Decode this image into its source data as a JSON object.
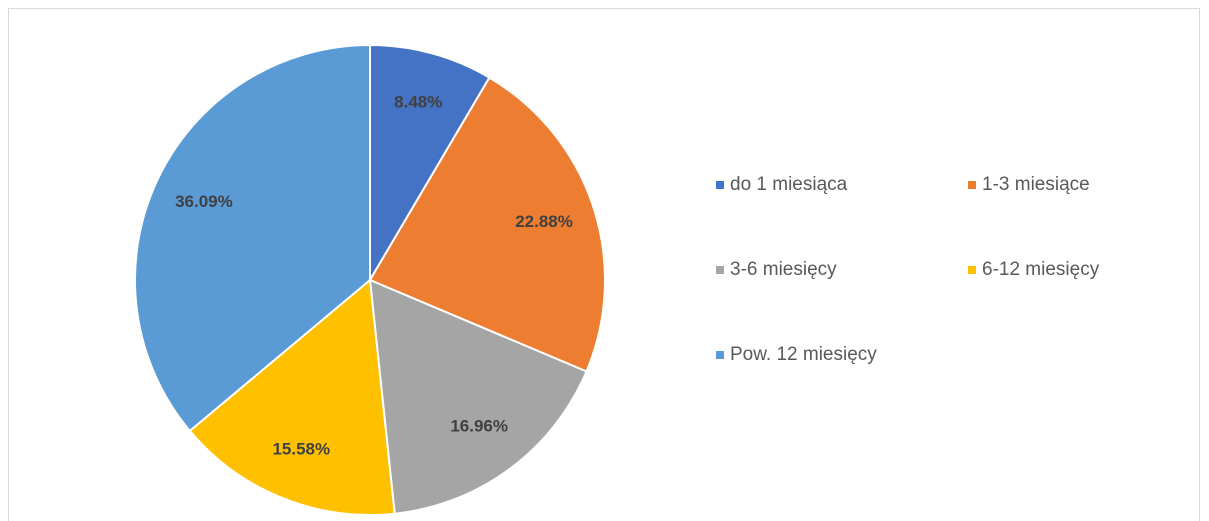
{
  "chart_data": {
    "type": "pie",
    "categories": [
      "do 1 miesiąca",
      "1-3 miesiące",
      "3-6 miesięcy",
      "6-12 miesięcy",
      "Pow. 12 miesięcy"
    ],
    "values": [
      8.48,
      22.88,
      16.96,
      15.58,
      36.09
    ],
    "value_labels": [
      "8.48%",
      "22.88%",
      "16.96%",
      "15.58%",
      "36.09%"
    ],
    "colors": [
      "#4472c4",
      "#ed7d31",
      "#a5a5a5",
      "#ffc000",
      "#5b9bd5"
    ],
    "legend": "right"
  }
}
